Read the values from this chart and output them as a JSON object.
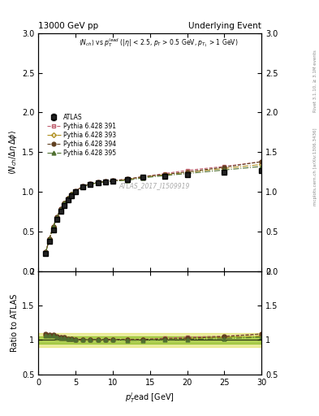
{
  "title_left": "13000 GeV pp",
  "title_right": "Underlying Event",
  "ylabel_main": "$\\langle N_{ch}/\\Delta\\eta\\,\\Delta\\phi\\rangle$",
  "ylabel_ratio": "Ratio to ATLAS",
  "xlabel": "$p_{T}^{l}$ead [GeV]",
  "annotation": "$\\langle N_{ch}\\rangle$ vs $p_T^{lead}$ ($|\\eta|$ < 2.5, $p_T$ > 0.5 GeV, $p_{T_1}$ > 1 GeV)",
  "watermark": "ATLAS_2017_I1509919",
  "right_label": "mcplots.cern.ch [arXiv:1306.3436]",
  "rivet_label": "Rivet 3.1.10, ≥ 3.1M events",
  "ylim_main": [
    0,
    3
  ],
  "ylim_ratio": [
    0.5,
    2
  ],
  "xlim": [
    0,
    30
  ],
  "atlas_x": [
    1.0,
    1.5,
    2.0,
    2.5,
    3.0,
    3.5,
    4.0,
    4.5,
    5.0,
    6.0,
    7.0,
    8.0,
    9.0,
    10.0,
    12.0,
    14.0,
    17.0,
    20.0,
    25.0,
    30.0
  ],
  "atlas_y": [
    0.22,
    0.38,
    0.52,
    0.65,
    0.75,
    0.83,
    0.9,
    0.95,
    1.0,
    1.06,
    1.09,
    1.11,
    1.12,
    1.13,
    1.15,
    1.18,
    1.2,
    1.22,
    1.25,
    1.27
  ],
  "atlas_yerr": [
    0.01,
    0.01,
    0.01,
    0.01,
    0.01,
    0.01,
    0.01,
    0.01,
    0.01,
    0.01,
    0.01,
    0.01,
    0.01,
    0.01,
    0.01,
    0.01,
    0.01,
    0.01,
    0.02,
    0.02
  ],
  "pythia391_y": [
    0.24,
    0.41,
    0.56,
    0.68,
    0.78,
    0.86,
    0.92,
    0.97,
    1.01,
    1.07,
    1.1,
    1.12,
    1.13,
    1.14,
    1.16,
    1.19,
    1.23,
    1.27,
    1.32,
    1.38
  ],
  "pythia393_y": [
    0.235,
    0.405,
    0.555,
    0.675,
    0.775,
    0.855,
    0.915,
    0.965,
    1.005,
    1.065,
    1.095,
    1.115,
    1.125,
    1.135,
    1.155,
    1.185,
    1.215,
    1.245,
    1.295,
    1.345
  ],
  "pythia394_y": [
    0.24,
    0.41,
    0.56,
    0.68,
    0.78,
    0.86,
    0.92,
    0.97,
    1.01,
    1.07,
    1.1,
    1.12,
    1.13,
    1.14,
    1.16,
    1.19,
    1.22,
    1.25,
    1.31,
    1.38
  ],
  "pythia395_y": [
    0.235,
    0.405,
    0.555,
    0.675,
    0.775,
    0.855,
    0.915,
    0.965,
    1.005,
    1.065,
    1.095,
    1.115,
    1.125,
    1.135,
    1.145,
    1.175,
    1.205,
    1.23,
    1.275,
    1.32
  ],
  "color391": "#c06070",
  "color393": "#b09020",
  "color394": "#604020",
  "color395": "#507030",
  "atlas_color": "#000000",
  "atlas_fill": "#222222",
  "band_color_yellow": "#d0d000",
  "band_color_green": "#70b000",
  "band_alpha_yellow": 0.35,
  "band_alpha_green": 0.5
}
